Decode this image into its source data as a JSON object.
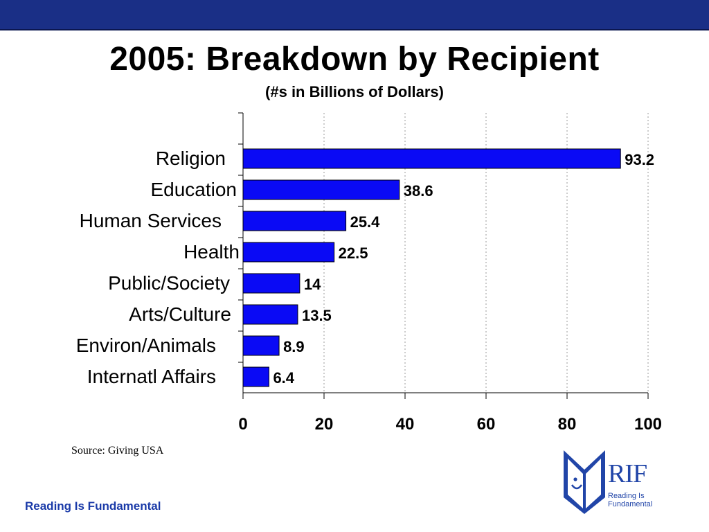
{
  "title": "2005: Breakdown by Recipient",
  "subtitle": "(#s in Billions of Dollars)",
  "source": "Source:  Giving USA",
  "footer": "Reading Is Fundamental",
  "logo": {
    "mark": "RIF",
    "tagline": "Reading Is Fundamental"
  },
  "colors": {
    "bar": "#0a0af5",
    "band": "#1a2f86",
    "footer_text": "#1a3aa8",
    "logo": "#2145a8"
  },
  "chart_data": {
    "type": "bar",
    "orientation": "horizontal",
    "categories": [
      "Religion",
      "Education",
      "Human Services",
      "Health",
      "Public/Society",
      "Arts/Culture",
      "Environ/Animals",
      "Internatl Affairs"
    ],
    "values": [
      93.2,
      38.6,
      25.4,
      22.5,
      14,
      13.5,
      8.9,
      6.4
    ],
    "value_labels": [
      "93.2",
      "38.6",
      "25.4",
      "22.5",
      "14",
      "13.5",
      "8.9",
      "6.4"
    ],
    "xlim": [
      0,
      100
    ],
    "xticks": [
      0,
      20,
      40,
      60,
      80,
      100
    ],
    "grid": "vertical dashed",
    "title": "2005: Breakdown by Recipient",
    "subtitle": "(#s in Billions of Dollars)"
  }
}
